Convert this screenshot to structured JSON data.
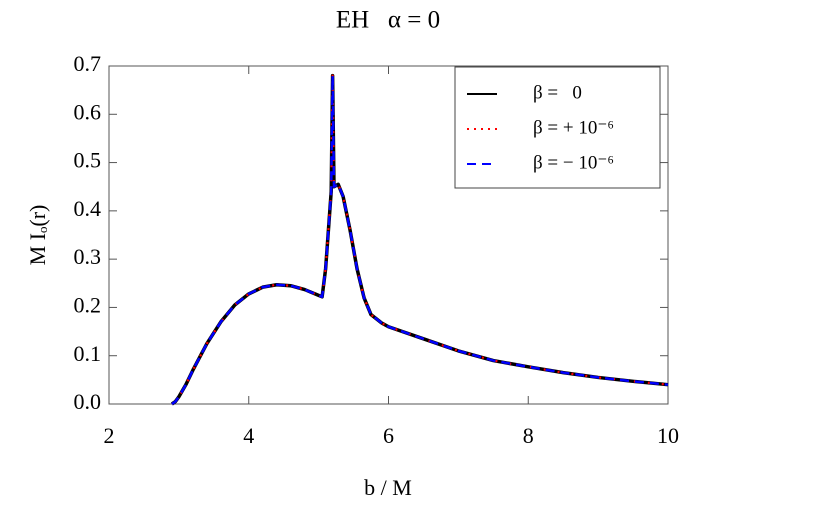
{
  "chart_data": {
    "type": "line",
    "title": "EH   α = 0",
    "x_label": "b / M",
    "y_label": "M Iₒ(r)",
    "x": [
      2.9,
      2.95,
      3.0,
      3.1,
      3.2,
      3.4,
      3.6,
      3.8,
      4.0,
      4.2,
      4.4,
      4.6,
      4.8,
      5.0,
      5.05,
      5.1,
      5.15,
      5.18,
      5.2,
      5.22,
      5.28,
      5.35,
      5.45,
      5.55,
      5.65,
      5.75,
      5.9,
      6.0,
      6.5,
      7.0,
      7.5,
      8.0,
      8.5,
      9.0,
      9.5,
      10.0
    ],
    "series": [
      {
        "name": "β =   0",
        "color": "#000000",
        "style": "solid",
        "values": [
          0,
          0.005,
          0.015,
          0.04,
          0.07,
          0.125,
          0.17,
          0.205,
          0.228,
          0.242,
          0.247,
          0.245,
          0.237,
          0.225,
          0.222,
          0.28,
          0.38,
          0.44,
          0.68,
          0.45,
          0.455,
          0.43,
          0.36,
          0.28,
          0.22,
          0.185,
          0.168,
          0.16,
          0.135,
          0.11,
          0.09,
          0.077,
          0.065,
          0.055,
          0.047,
          0.04
        ]
      },
      {
        "name": "β = + 10⁻⁶",
        "color": "#ff0000",
        "style": "dotted",
        "values": [
          0,
          0.005,
          0.015,
          0.04,
          0.07,
          0.125,
          0.17,
          0.205,
          0.228,
          0.242,
          0.247,
          0.245,
          0.237,
          0.225,
          0.222,
          0.28,
          0.38,
          0.44,
          0.68,
          0.45,
          0.455,
          0.43,
          0.36,
          0.28,
          0.22,
          0.185,
          0.168,
          0.16,
          0.135,
          0.11,
          0.09,
          0.077,
          0.065,
          0.055,
          0.047,
          0.04
        ]
      },
      {
        "name": "β = − 10⁻⁶",
        "color": "#0000ff",
        "style": "dashed",
        "values": [
          0,
          0.005,
          0.015,
          0.04,
          0.07,
          0.125,
          0.17,
          0.205,
          0.228,
          0.242,
          0.247,
          0.245,
          0.237,
          0.225,
          0.222,
          0.28,
          0.38,
          0.44,
          0.68,
          0.45,
          0.455,
          0.43,
          0.36,
          0.28,
          0.22,
          0.185,
          0.168,
          0.16,
          0.135,
          0.11,
          0.09,
          0.077,
          0.065,
          0.055,
          0.047,
          0.04
        ]
      }
    ],
    "xlim": [
      2,
      10
    ],
    "xticks": [
      2,
      4,
      6,
      8,
      10
    ],
    "ylim": [
      0,
      0.7
    ],
    "yticks": [
      {
        "value": 0,
        "label": "0.0"
      },
      0.1,
      0.2,
      0.3,
      0.4,
      0.5,
      0.6,
      0.7
    ],
    "legend": "upper right"
  }
}
